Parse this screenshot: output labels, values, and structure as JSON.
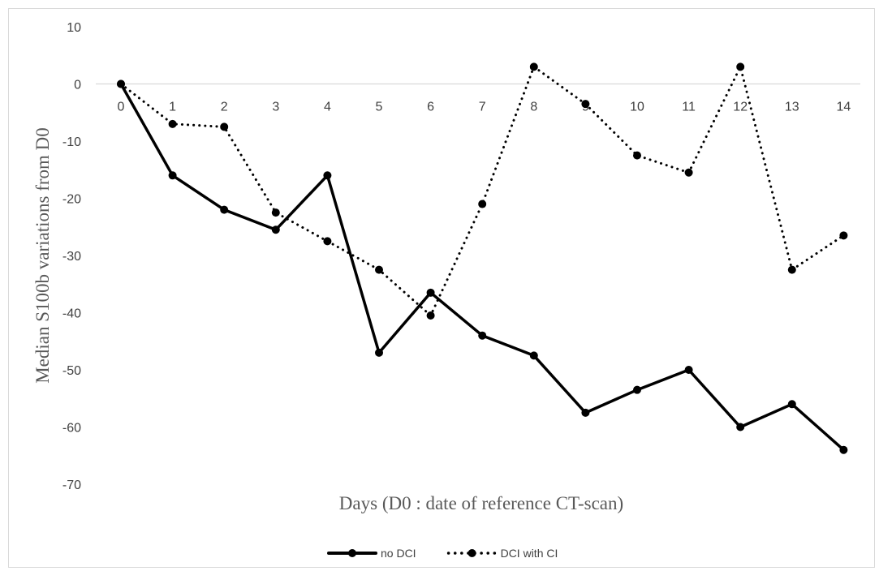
{
  "chart_data": {
    "type": "line",
    "title": "",
    "xlabel": "Days (D0 : date of reference CT-scan)",
    "ylabel": "Median S100b variations from D0",
    "categories": [
      "0",
      "1",
      "2",
      "3",
      "4",
      "5",
      "6",
      "7",
      "8",
      "9",
      "10",
      "11",
      "12",
      "13",
      "14"
    ],
    "ylim": [
      -70,
      10
    ],
    "yticks": [
      10,
      0,
      -10,
      -20,
      -30,
      -40,
      -50,
      -60,
      -70
    ],
    "grid": false,
    "legend_position": "bottom",
    "series": [
      {
        "name": "no DCI",
        "style": "solid",
        "color": "#000000",
        "values": [
          0,
          -16,
          -22,
          -25.5,
          -16,
          -47,
          -36.5,
          -44,
          -47.5,
          -57.5,
          -53.5,
          -50,
          -60,
          -56,
          -64
        ]
      },
      {
        "name": "DCI with CI",
        "style": "dotted",
        "color": "#000000",
        "values": [
          0,
          -7,
          -7.5,
          -22.5,
          -27.5,
          -32.5,
          -40.5,
          -21,
          3,
          -3.5,
          -12.5,
          -15.5,
          3,
          -32.5,
          -26.5
        ]
      }
    ]
  }
}
